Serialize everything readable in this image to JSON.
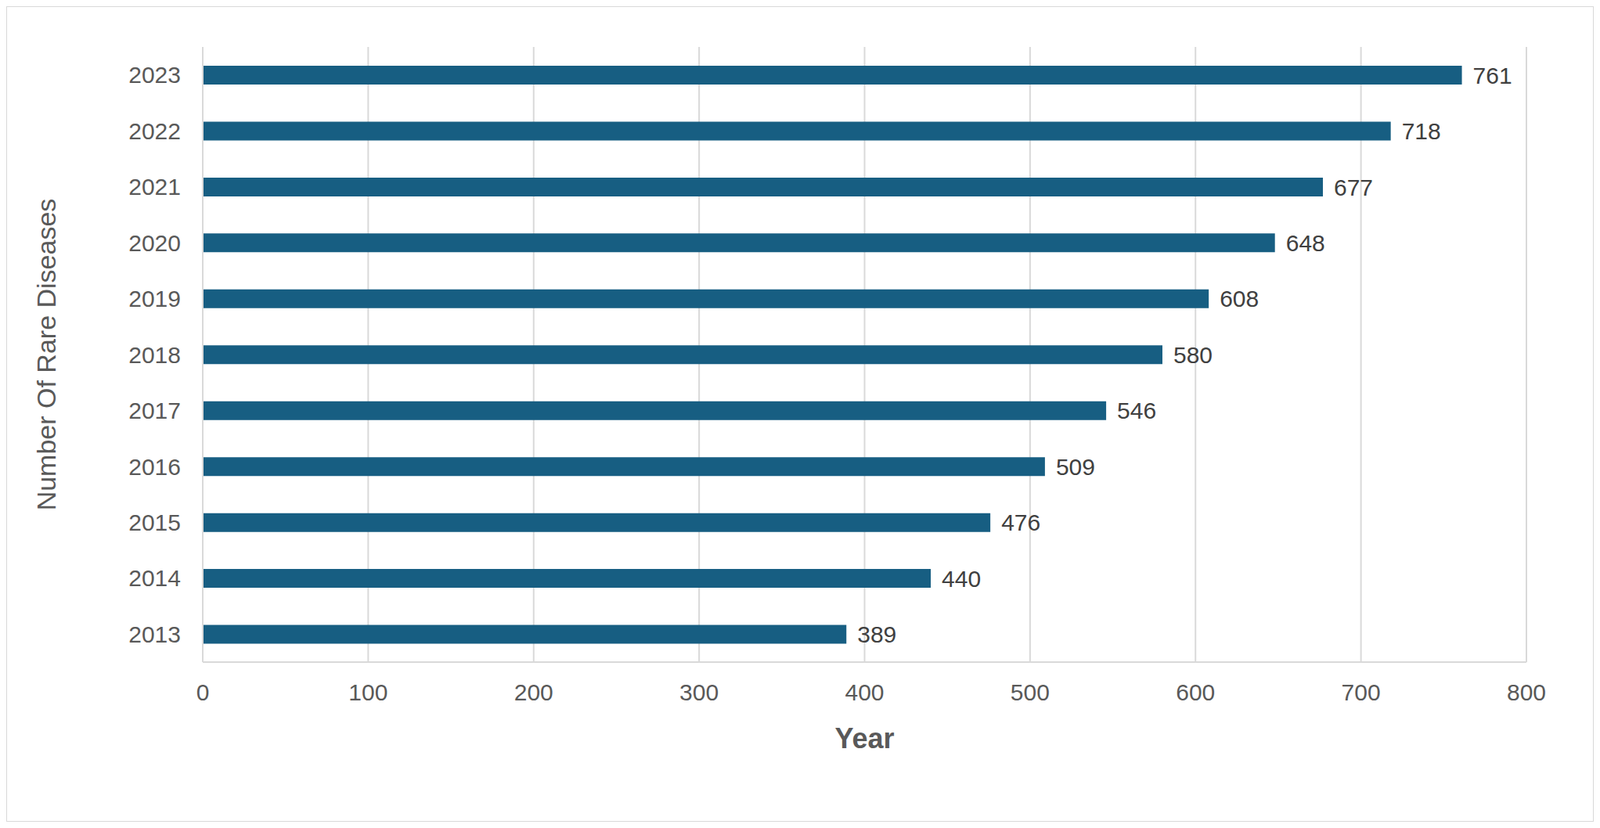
{
  "chart_data": {
    "type": "bar",
    "orientation": "horizontal",
    "x_label": "Year",
    "y_label": "Number Of Rare Diseases",
    "categories": [
      "2013",
      "2014",
      "2015",
      "2016",
      "2017",
      "2018",
      "2019",
      "2020",
      "2021",
      "2022",
      "2023"
    ],
    "values": [
      389,
      440,
      476,
      509,
      546,
      580,
      608,
      648,
      677,
      718,
      761
    ],
    "color": "#175e82",
    "xlim": [
      0,
      800
    ],
    "xticks": [
      0,
      100,
      200,
      300,
      400,
      500,
      600,
      700,
      800
    ],
    "grid": true,
    "data_labels": true
  }
}
